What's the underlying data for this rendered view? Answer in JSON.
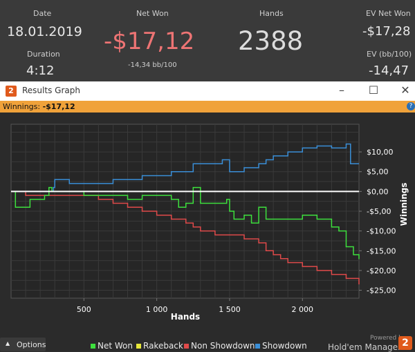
{
  "stats": {
    "date_label": "Date",
    "date_value": "18.01.2019",
    "duration_label": "Duration",
    "duration_value": "4:12",
    "net_won_label": "Net Won",
    "net_won_value": "-$17,12",
    "net_won_sub": "-14,34 bb/100",
    "hands_label": "Hands",
    "hands_value": "2388",
    "ev_net_won_label": "EV Net Won",
    "ev_net_won_value": "-$17,28",
    "ev_bb_label": "EV (bb/100)",
    "ev_bb_value": "-14,47"
  },
  "window": {
    "logo": "2",
    "title": "Results Graph",
    "minimize_icon": "minimize-icon",
    "maximize_icon": "maximize-icon",
    "close_icon": "close-icon"
  },
  "winnings_bar": {
    "label": "Winnings: ",
    "value": "-$17,12",
    "help": "?"
  },
  "chart_data": {
    "type": "line",
    "xlabel": "Hands",
    "ylabel": "Winnings",
    "xlim": [
      0,
      2388
    ],
    "ylim": [
      -27,
      17
    ],
    "x_ticks": [
      500,
      1000,
      1500,
      2000
    ],
    "x_tick_labels": [
      "500",
      "1 000",
      "1 500",
      "2 000"
    ],
    "y_ticks": [
      10,
      5,
      0,
      -5,
      -10,
      -15,
      -20,
      -25
    ],
    "y_tick_labels": [
      "$10,00",
      "$5,00",
      "$0,00",
      "-$5,00",
      "-$10,00",
      "-$15,00",
      "-$20,00",
      "-$25,00"
    ],
    "grid": true,
    "colors": {
      "net_won": "#3de03d",
      "rakeback": "#e8e83a",
      "non_showdown": "#e04a4a",
      "showdown": "#3a8fd8",
      "zero_line": "#ffffff"
    },
    "series": [
      {
        "name": "Net Won",
        "color": "#3de03d",
        "x": [
          0,
          30,
          60,
          130,
          200,
          230,
          260,
          280,
          350,
          450,
          500,
          600,
          700,
          800,
          900,
          1000,
          1100,
          1150,
          1200,
          1250,
          1300,
          1400,
          1450,
          1480,
          1500,
          1530,
          1600,
          1650,
          1700,
          1750,
          1800,
          1900,
          2000,
          2100,
          2200,
          2250,
          2300,
          2350,
          2388
        ],
        "y": [
          0,
          -4,
          -4,
          -2,
          -2,
          -1,
          1,
          0,
          0,
          0,
          -1,
          -1,
          -1,
          -2,
          -1,
          -1,
          -2,
          -4,
          -3,
          1,
          -3,
          -3,
          -3,
          -2,
          -5,
          -7,
          -6,
          -8,
          -4,
          -7,
          -7,
          -7,
          -6,
          -7,
          -9,
          -10,
          -14,
          -16,
          -17.12
        ]
      },
      {
        "name": "Non Showdown",
        "color": "#e04a4a",
        "x": [
          0,
          100,
          200,
          300,
          400,
          500,
          600,
          700,
          800,
          900,
          1000,
          1100,
          1200,
          1250,
          1300,
          1400,
          1500,
          1600,
          1700,
          1750,
          1800,
          1850,
          1900,
          2000,
          2100,
          2200,
          2300,
          2388
        ],
        "y": [
          0,
          -1,
          -1,
          -1,
          -1,
          -1,
          -2,
          -3,
          -4,
          -5,
          -6,
          -7,
          -8,
          -9,
          -10,
          -11,
          -11,
          -12,
          -13,
          -15,
          -16,
          -17,
          -18,
          -19,
          -20,
          -21,
          -22,
          -23.5
        ]
      },
      {
        "name": "Showdown",
        "color": "#3a8fd8",
        "x": [
          0,
          150,
          290,
          300,
          400,
          500,
          700,
          800,
          900,
          1000,
          1100,
          1200,
          1250,
          1300,
          1400,
          1450,
          1500,
          1600,
          1700,
          1750,
          1800,
          1900,
          2000,
          2100,
          2200,
          2300,
          2330,
          2388
        ],
        "y": [
          0,
          0,
          1,
          3,
          2,
          2,
          3,
          3,
          4,
          4,
          5,
          5,
          7,
          7,
          7,
          8,
          5,
          6,
          7,
          8,
          9,
          10,
          11,
          11.5,
          11,
          12,
          7,
          7
        ]
      }
    ],
    "legend": [
      "Net Won",
      "Rakeback",
      "Non Showdown",
      "Showdown"
    ],
    "legend_placement": "bottom"
  },
  "footer": {
    "options_label": "Options",
    "powered_by": "Powered by",
    "brand": "Hold'em Manager",
    "brand_logo": "2"
  }
}
